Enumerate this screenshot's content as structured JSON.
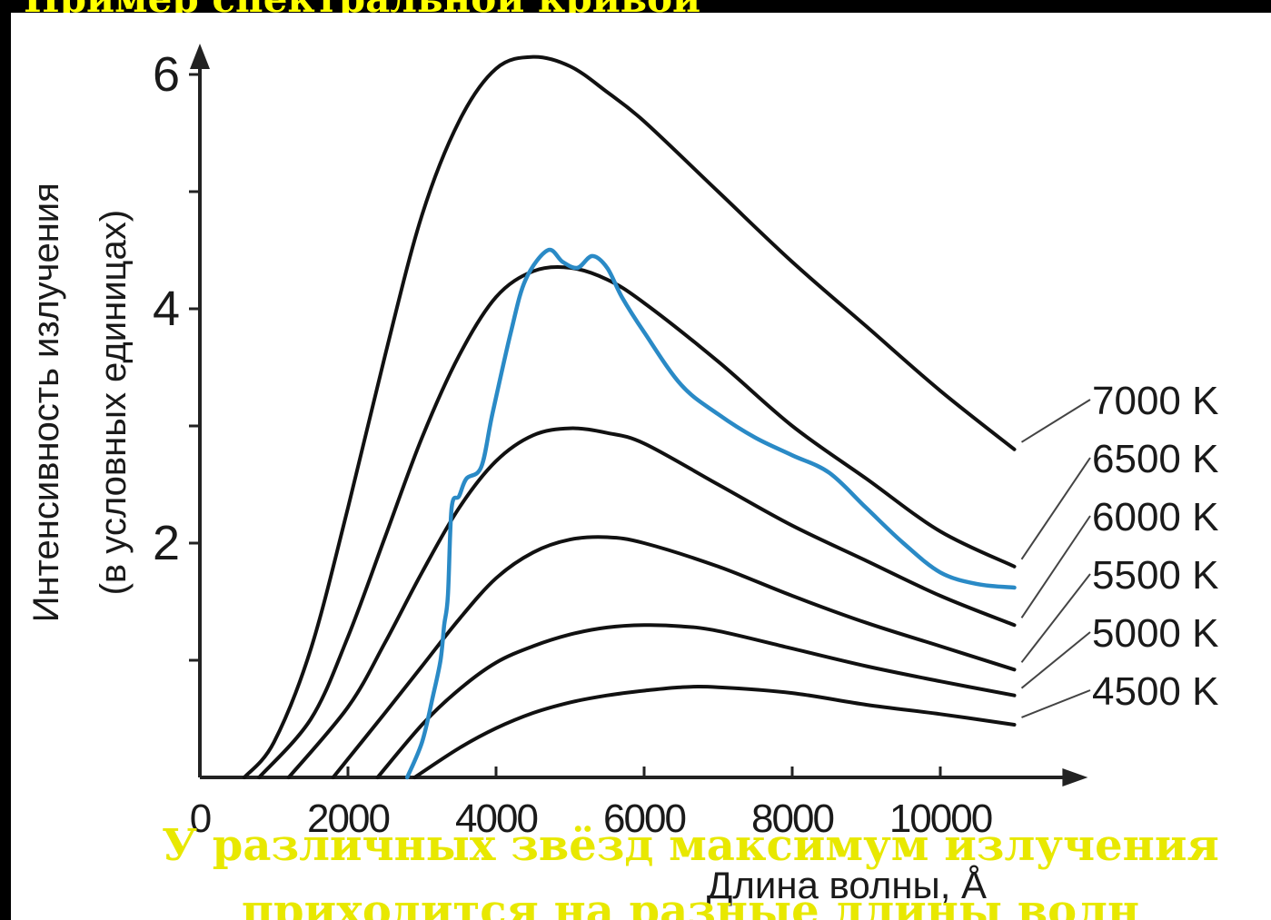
{
  "slide": {
    "top_text": "Пример спектральной кривой",
    "caption_line1": "У различных звёзд максимум излучения",
    "caption_line2": "приходится на разные длины волн"
  },
  "colors": {
    "background": "#000000",
    "panel": "#ffffff",
    "blackbody_curves": "#111111",
    "solar_spectrum": "#2a8ac6",
    "caption": "#e8e800"
  },
  "chart_data": {
    "type": "line",
    "xlabel": "Длина волны, Å",
    "ylabel_line1": "Интенсивность излучения",
    "ylabel_line2": "(в условных единицах)",
    "xlim": [
      0,
      11600
    ],
    "ylim": [
      0,
      6.3
    ],
    "x_ticks": [
      0,
      2000,
      4000,
      6000,
      8000,
      10000
    ],
    "x_tick_labels": [
      "0",
      "2000",
      "4000",
      "6000",
      "8000",
      "10000"
    ],
    "y_ticks": [
      1,
      2,
      3,
      4,
      5,
      6
    ],
    "y_tick_labels": [
      "",
      "2",
      "",
      "4",
      "",
      "6"
    ],
    "grid": false,
    "series": [
      {
        "name": "7000 K",
        "color": "#111111",
        "x": [
          600,
          1000,
          1500,
          2000,
          2500,
          3000,
          3500,
          4000,
          4500,
          5000,
          5500,
          6000,
          7000,
          8000,
          9000,
          10000,
          11000
        ],
        "values": [
          0,
          0.3,
          1.1,
          2.3,
          3.6,
          4.8,
          5.6,
          6.05,
          6.15,
          6.07,
          5.85,
          5.6,
          5.0,
          4.4,
          3.85,
          3.3,
          2.8
        ]
      },
      {
        "name": "6500 K",
        "color": "#111111",
        "x": [
          800,
          1500,
          2000,
          2500,
          3000,
          3500,
          4000,
          4500,
          5000,
          5500,
          6000,
          7000,
          8000,
          9000,
          10000,
          11000
        ],
        "values": [
          0,
          0.5,
          1.2,
          2.05,
          2.9,
          3.6,
          4.1,
          4.32,
          4.35,
          4.25,
          4.05,
          3.55,
          3.0,
          2.55,
          2.1,
          1.8
        ]
      },
      {
        "name": "6000 K",
        "color": "#111111",
        "x": [
          1200,
          2000,
          2500,
          3000,
          3500,
          4000,
          4500,
          5000,
          5500,
          6000,
          7000,
          8000,
          9000,
          10000,
          11000
        ],
        "values": [
          0,
          0.6,
          1.15,
          1.75,
          2.3,
          2.7,
          2.92,
          2.98,
          2.94,
          2.85,
          2.5,
          2.15,
          1.85,
          1.55,
          1.3
        ]
      },
      {
        "name": "5500 K",
        "color": "#111111",
        "x": [
          1800,
          2500,
          3000,
          3500,
          4000,
          4500,
          5000,
          5500,
          6000,
          7000,
          8000,
          9000,
          10000,
          11000
        ],
        "values": [
          0,
          0.55,
          0.95,
          1.35,
          1.7,
          1.92,
          2.03,
          2.05,
          2.0,
          1.8,
          1.55,
          1.32,
          1.12,
          0.92
        ]
      },
      {
        "name": "5000 K",
        "color": "#111111",
        "x": [
          2400,
          3000,
          3500,
          4000,
          4500,
          5000,
          5500,
          6000,
          6500,
          7000,
          8000,
          9000,
          10000,
          11000
        ],
        "values": [
          0,
          0.45,
          0.75,
          0.98,
          1.12,
          1.22,
          1.28,
          1.3,
          1.29,
          1.25,
          1.1,
          0.95,
          0.82,
          0.7
        ]
      },
      {
        "name": "4500 K",
        "color": "#111111",
        "x": [
          2900,
          3500,
          4000,
          4500,
          5000,
          5500,
          6000,
          6500,
          7000,
          8000,
          9000,
          10000,
          11000
        ],
        "values": [
          0,
          0.25,
          0.42,
          0.55,
          0.64,
          0.7,
          0.74,
          0.77,
          0.77,
          0.72,
          0.62,
          0.54,
          0.45
        ]
      },
      {
        "color": "#2a8ac6",
        "x": [
          2800,
          3000,
          3150,
          3250,
          3300,
          3350,
          3400,
          3500,
          3600,
          3800,
          3950,
          4200,
          4400,
          4700,
          4900,
          5100,
          5300,
          5500,
          5700,
          6000,
          6500,
          7000,
          7500,
          8000,
          8500,
          9000,
          9500,
          10000,
          10500,
          11000
        ],
        "values": [
          0,
          0.3,
          0.7,
          1.0,
          1.3,
          1.55,
          2.3,
          2.4,
          2.55,
          2.65,
          3.1,
          3.8,
          4.25,
          4.5,
          4.4,
          4.35,
          4.45,
          4.35,
          4.1,
          3.8,
          3.35,
          3.1,
          2.9,
          2.75,
          2.6,
          2.3,
          2.0,
          1.75,
          1.65,
          1.62
        ]
      }
    ]
  }
}
